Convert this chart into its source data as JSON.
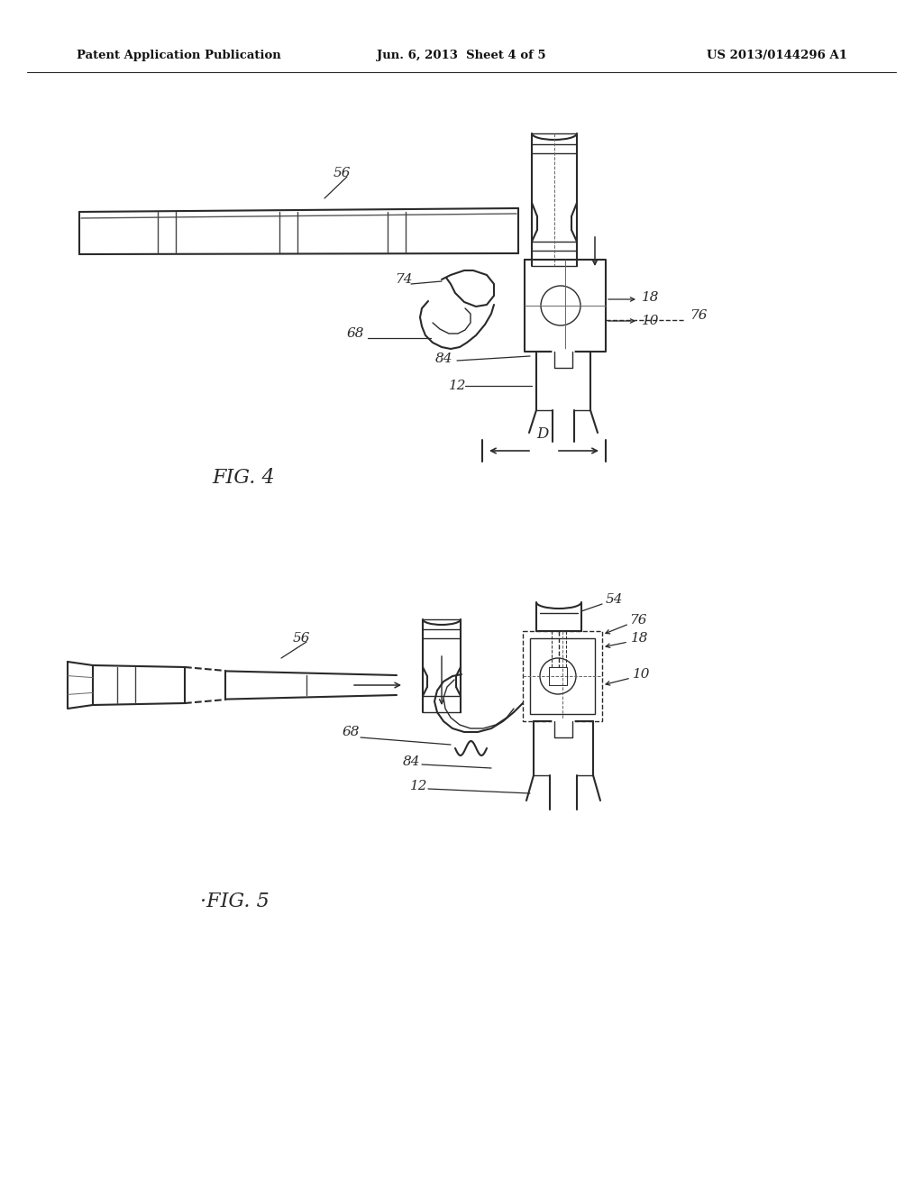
{
  "background_color": "#ffffff",
  "header_text": "Patent Application Publication",
  "header_date": "Jun. 6, 2013  Sheet 4 of 5",
  "header_patent": "US 2013/0144296 A1",
  "fig4_label": "FIG. 4",
  "fig5_label": "·FIG. 5",
  "text_color": "#111111",
  "line_color": "#2a2a2a"
}
